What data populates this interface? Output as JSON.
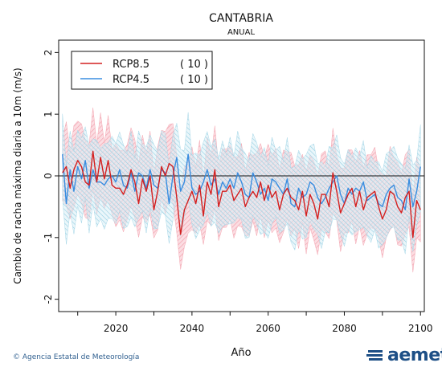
{
  "chart_data": {
    "type": "line",
    "title": "CANTABRIA",
    "subtitle": "ANUAL",
    "xlabel": "Año",
    "ylabel": "Cambio de racha máxima diaria a 10m (m/s)",
    "xlim": [
      2005,
      2101
    ],
    "ylim": [
      -2.2,
      2.2
    ],
    "xticks": [
      2020,
      2040,
      2060,
      2080,
      2100
    ],
    "yticks": [
      -2,
      -1,
      0,
      1,
      2
    ],
    "grid": false,
    "legend_position": "top-left",
    "x_start": 2006,
    "x_end": 2100,
    "series": [
      {
        "name": "RCP8.5",
        "count_label": "( 10 )",
        "color": "#d42020",
        "band_color": "#f4a7b2",
        "values": [
          0.05,
          0.15,
          -0.2,
          0.1,
          0.25,
          0.15,
          -0.1,
          -0.15,
          0.4,
          -0.1,
          0.3,
          -0.05,
          0.25,
          -0.15,
          -0.2,
          -0.2,
          -0.3,
          -0.15,
          0.1,
          -0.1,
          -0.45,
          -0.05,
          -0.25,
          0.0,
          -0.55,
          -0.25,
          0.15,
          0.0,
          0.2,
          0.15,
          -0.35,
          -0.95,
          -0.55,
          -0.4,
          -0.25,
          -0.45,
          -0.15,
          -0.65,
          -0.1,
          -0.3,
          0.1,
          -0.5,
          -0.25,
          -0.25,
          -0.15,
          -0.4,
          -0.3,
          -0.2,
          -0.5,
          -0.35,
          -0.25,
          -0.35,
          -0.1,
          -0.4,
          -0.15,
          -0.35,
          -0.25,
          -0.55,
          -0.3,
          -0.2,
          -0.35,
          -0.4,
          -0.55,
          -0.25,
          -0.65,
          -0.3,
          -0.45,
          -0.7,
          -0.3,
          -0.3,
          -0.5,
          0.05,
          -0.25,
          -0.6,
          -0.45,
          -0.3,
          -0.2,
          -0.5,
          -0.25,
          -0.55,
          -0.35,
          -0.3,
          -0.25,
          -0.5,
          -0.7,
          -0.55,
          -0.25,
          -0.3,
          -0.5,
          -0.6,
          -0.35,
          -0.25,
          -1.0,
          -0.4,
          -0.55
        ]
      },
      {
        "name": "RCP4.5",
        "count_label": "( 10 )",
        "color": "#3a8de0",
        "band_color": "#a9d8e8",
        "values": [
          0.35,
          -0.45,
          0.1,
          -0.25,
          0.15,
          -0.05,
          0.25,
          -0.2,
          0.1,
          -0.1,
          -0.1,
          -0.15,
          -0.05,
          0.0,
          -0.1,
          0.1,
          -0.15,
          -0.2,
          0.05,
          -0.25,
          0.05,
          0.0,
          -0.2,
          0.1,
          -0.15,
          -0.2,
          0.1,
          0.05,
          -0.45,
          0.0,
          0.3,
          -0.25,
          -0.1,
          0.35,
          -0.2,
          -0.3,
          -0.25,
          -0.1,
          0.1,
          -0.15,
          -0.05,
          -0.3,
          -0.1,
          -0.2,
          -0.05,
          -0.2,
          0.05,
          -0.1,
          -0.3,
          -0.35,
          0.05,
          -0.1,
          -0.3,
          -0.2,
          -0.4,
          -0.05,
          -0.1,
          -0.2,
          -0.3,
          -0.05,
          -0.45,
          -0.5,
          -0.2,
          -0.35,
          -0.3,
          -0.1,
          -0.15,
          -0.35,
          -0.45,
          -0.35,
          -0.2,
          -0.1,
          0.0,
          -0.3,
          -0.45,
          -0.2,
          -0.3,
          -0.2,
          -0.25,
          -0.1,
          -0.4,
          -0.35,
          -0.3,
          -0.45,
          -0.5,
          -0.3,
          -0.2,
          -0.15,
          -0.35,
          -0.4,
          -0.55,
          -0.05,
          -0.5,
          -0.25,
          0.15
        ]
      }
    ]
  },
  "footer": {
    "credit": "Agencia Estatal de Meteorología"
  },
  "logo": {
    "text": "aemet",
    "color": "#1d4f86"
  }
}
